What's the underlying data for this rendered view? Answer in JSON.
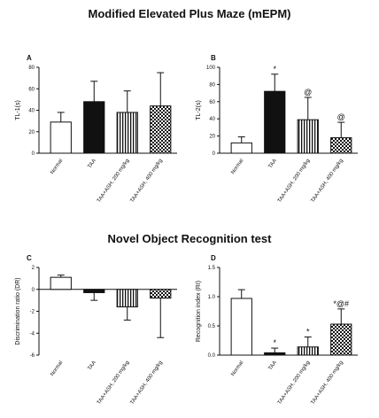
{
  "titles": {
    "top": "Modified Elevated Plus Maze (mEPM)",
    "bottom": "Novel Object Recognition test"
  },
  "chart_data": [
    {
      "type": "bar",
      "panel": "A",
      "categories": [
        "Normal",
        "TAA",
        "TAA+ASH, 200 mg/kg",
        "TAA+ASH, 400 mg/kg"
      ],
      "values": [
        29,
        48,
        38,
        44
      ],
      "errors": [
        9,
        19,
        20,
        31
      ],
      "annotations": [
        "",
        "",
        "",
        ""
      ],
      "ylabel": "TL-1(s)",
      "ylim": [
        0,
        80
      ],
      "yticks": [
        0,
        20,
        40,
        60,
        80
      ],
      "patterns": [
        "white",
        "black",
        "vstripes",
        "checker"
      ]
    },
    {
      "type": "bar",
      "panel": "B",
      "categories": [
        "Normal",
        "TAA",
        "TAA+ASH, 200 mg/kg",
        "TAA+ASH, 400 mg/kg"
      ],
      "values": [
        12,
        72,
        39,
        18
      ],
      "errors": [
        7,
        20,
        26,
        18
      ],
      "annotations": [
        "",
        "*",
        "@",
        "@"
      ],
      "ylabel": "TL-2(s)",
      "ylim": [
        0,
        100
      ],
      "yticks": [
        0,
        20,
        40,
        60,
        80,
        100
      ],
      "patterns": [
        "white",
        "black",
        "vstripes",
        "checker"
      ]
    },
    {
      "type": "bar",
      "panel": "C",
      "categories": [
        "Normal",
        "TAA",
        "TAA+ASH, 200 mg/kg",
        "TAA+ASH, 400 mg/kg"
      ],
      "values": [
        1.1,
        -0.3,
        -1.6,
        -0.8
      ],
      "errors": [
        0.2,
        0.7,
        1.2,
        3.6
      ],
      "annotations": [
        "",
        "",
        "",
        ""
      ],
      "ylabel": "Discrimination ratio (DR)",
      "ylim": [
        -6,
        2
      ],
      "yticks": [
        -6,
        -4,
        -2,
        0,
        2
      ],
      "patterns": [
        "white",
        "black",
        "vstripes",
        "checker"
      ]
    },
    {
      "type": "bar",
      "panel": "D",
      "categories": [
        "Normal",
        "TAA",
        "TAA+ASH, 200 mg/kg",
        "TAA+ASH, 400 mg/kg"
      ],
      "values": [
        0.97,
        0.04,
        0.14,
        0.53
      ],
      "errors": [
        0.15,
        0.08,
        0.17,
        0.26
      ],
      "annotations": [
        "",
        "*",
        "*",
        "*@#"
      ],
      "ylabel": "Recognition index (RI)",
      "ylim": [
        0,
        1.5
      ],
      "yticks": [
        0.0,
        0.5,
        1.0,
        1.5
      ],
      "ytick_labels": [
        "0.0",
        "0.5",
        "1.0",
        "1.5"
      ],
      "patterns": [
        "white",
        "black",
        "vstripes",
        "checker"
      ]
    }
  ]
}
